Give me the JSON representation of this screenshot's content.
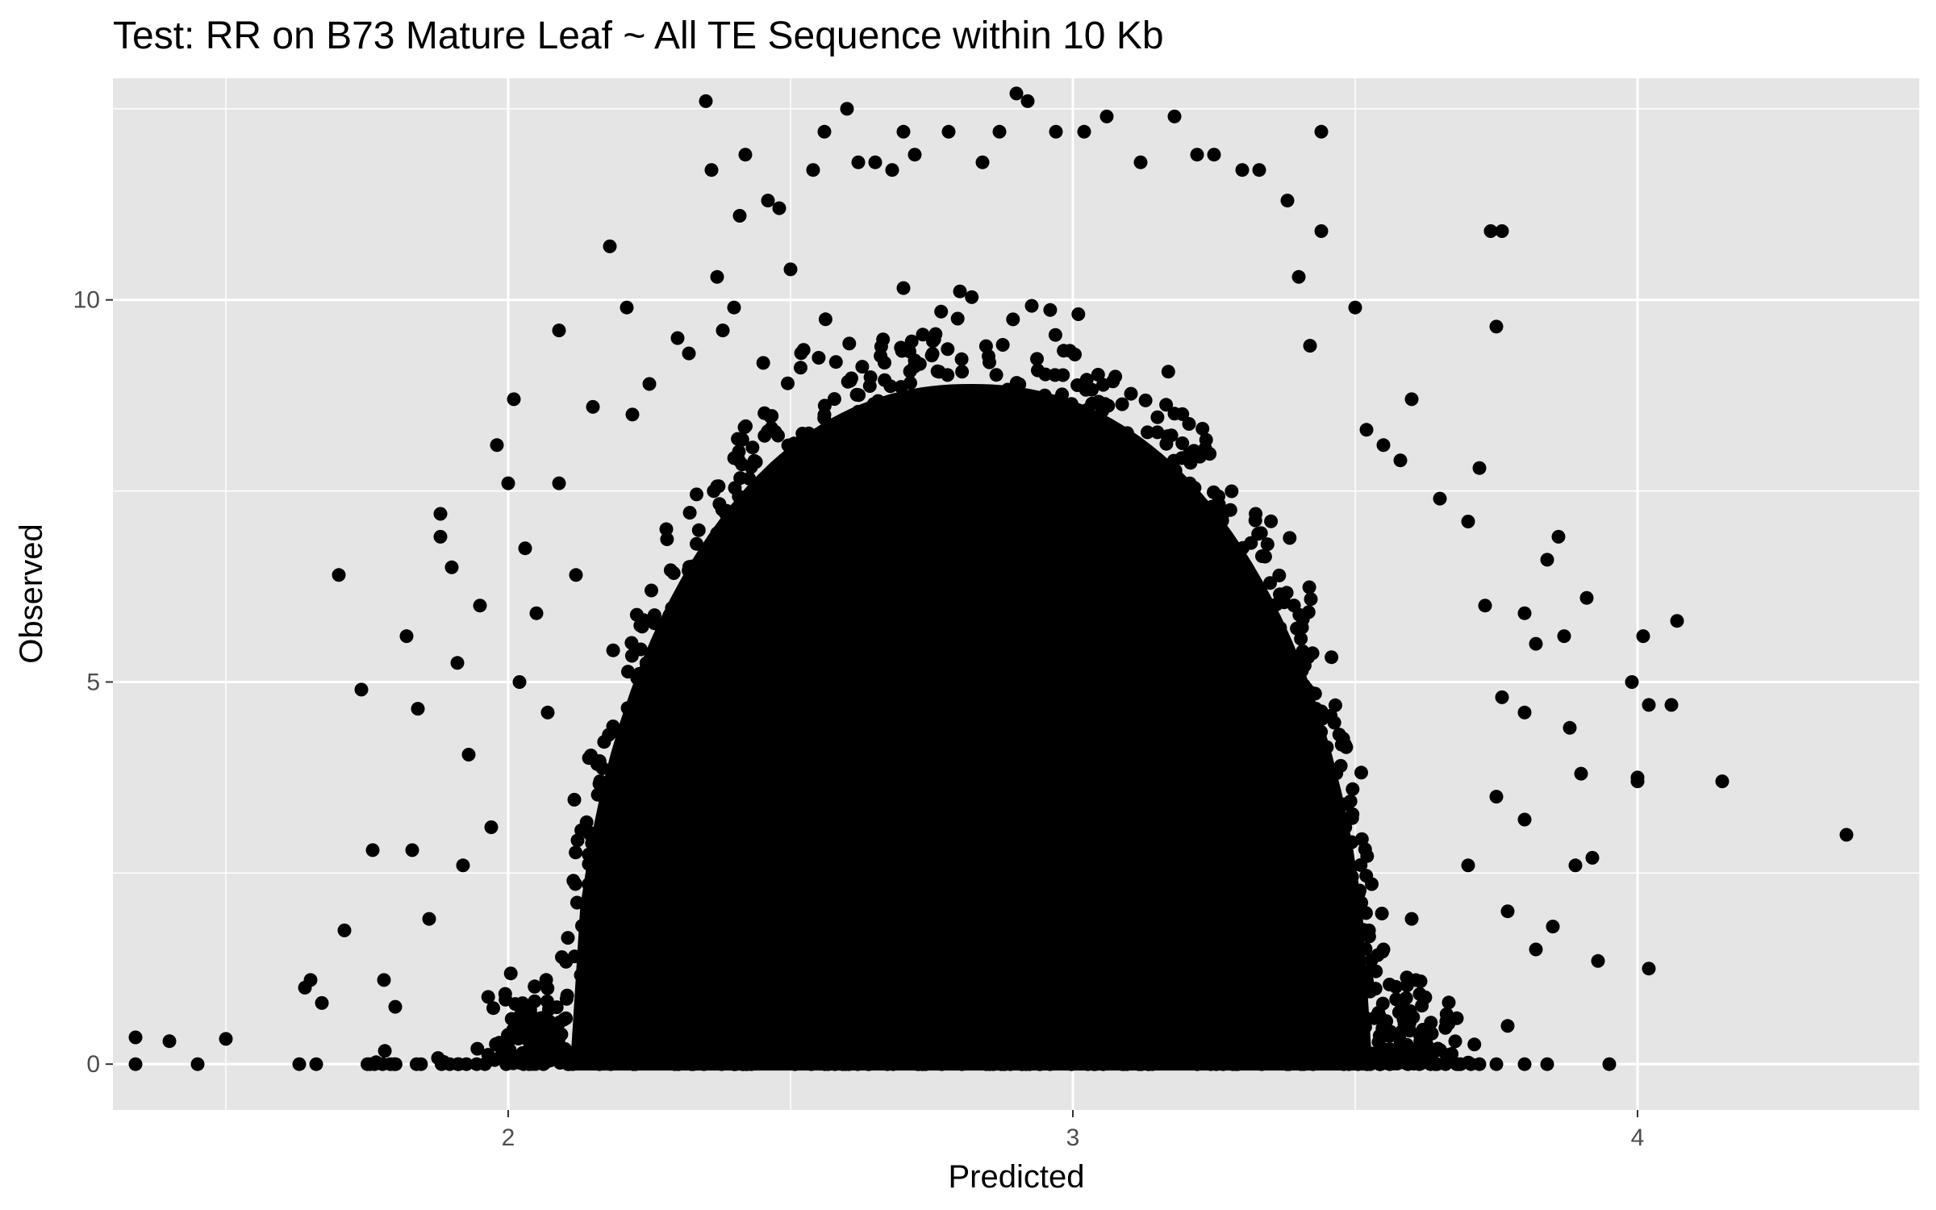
{
  "chart_data": {
    "type": "scatter",
    "title": "Test: RR on B73 Mature Leaf ~ All TE Sequence within 10 Kb",
    "xlabel": "Predicted",
    "ylabel": "Observed",
    "xlim": [
      1.3,
      4.5
    ],
    "ylim": [
      -0.6,
      12.9
    ],
    "x_ticks": [
      2,
      3,
      4
    ],
    "y_ticks": [
      0,
      5,
      10
    ],
    "x_tick_labels": [
      "2",
      "3",
      "4"
    ],
    "y_tick_labels": [
      "0",
      "5",
      "10"
    ],
    "grid": true,
    "legend": "none",
    "colors": {
      "panel": "#e5e5e5",
      "grid": "#ffffff",
      "point": "#000000",
      "tick": "#4d4d4d"
    },
    "dense_core": {
      "description_of_distribution": "solid filled dome of overlapping points",
      "center_x": 2.82,
      "base_x_range": [
        2.1,
        3.52
      ],
      "peak_y": 8.9,
      "base_y": 0
    },
    "points": [
      [
        1.34,
        0.35
      ],
      [
        1.34,
        0.0
      ],
      [
        1.4,
        0.3
      ],
      [
        1.45,
        0.0
      ],
      [
        1.5,
        0.33
      ],
      [
        1.63,
        0.0
      ],
      [
        1.64,
        1.0
      ],
      [
        1.65,
        1.1
      ],
      [
        1.66,
        0.0
      ],
      [
        1.67,
        0.8
      ],
      [
        1.7,
        6.4
      ],
      [
        1.71,
        1.75
      ],
      [
        1.74,
        4.9
      ],
      [
        1.76,
        2.8
      ],
      [
        1.78,
        1.1
      ],
      [
        1.8,
        0.75
      ],
      [
        1.82,
        5.6
      ],
      [
        1.83,
        2.8
      ],
      [
        1.84,
        4.65
      ],
      [
        1.86,
        1.9
      ],
      [
        1.88,
        7.2
      ],
      [
        1.88,
        6.9
      ],
      [
        1.9,
        6.5
      ],
      [
        1.91,
        5.25
      ],
      [
        1.92,
        2.6
      ],
      [
        1.93,
        4.05
      ],
      [
        1.95,
        6.0
      ],
      [
        1.97,
        3.1
      ],
      [
        1.98,
        8.1
      ],
      [
        2.0,
        7.6
      ],
      [
        2.01,
        8.7
      ],
      [
        2.02,
        5.0
      ],
      [
        2.03,
        6.75
      ],
      [
        2.05,
        5.9
      ],
      [
        2.07,
        4.6
      ],
      [
        2.09,
        9.6
      ],
      [
        2.09,
        7.6
      ],
      [
        2.12,
        6.4
      ],
      [
        2.15,
        8.6
      ],
      [
        2.16,
        2.0
      ],
      [
        2.18,
        10.7
      ],
      [
        2.21,
        9.9
      ],
      [
        2.22,
        8.5
      ],
      [
        2.25,
        8.9
      ],
      [
        2.28,
        7.0
      ],
      [
        2.3,
        9.5
      ],
      [
        2.32,
        9.3
      ],
      [
        2.35,
        12.6
      ],
      [
        2.36,
        11.7
      ],
      [
        2.37,
        10.3
      ],
      [
        2.38,
        9.6
      ],
      [
        2.4,
        9.9
      ],
      [
        2.41,
        11.1
      ],
      [
        2.42,
        11.9
      ],
      [
        2.46,
        11.3
      ],
      [
        2.48,
        11.2
      ],
      [
        2.5,
        10.4
      ],
      [
        2.54,
        11.7
      ],
      [
        2.56,
        12.2
      ],
      [
        2.6,
        12.5
      ],
      [
        2.62,
        11.8
      ],
      [
        2.65,
        11.8
      ],
      [
        2.68,
        11.7
      ],
      [
        2.7,
        12.2
      ],
      [
        2.72,
        11.9
      ],
      [
        2.78,
        12.2
      ],
      [
        2.84,
        11.8
      ],
      [
        2.87,
        12.2
      ],
      [
        2.9,
        12.7
      ],
      [
        2.92,
        12.6
      ],
      [
        2.97,
        12.2
      ],
      [
        3.02,
        12.2
      ],
      [
        3.06,
        12.4
      ],
      [
        3.12,
        11.8
      ],
      [
        3.18,
        12.4
      ],
      [
        3.22,
        11.9
      ],
      [
        3.25,
        11.9
      ],
      [
        3.3,
        11.7
      ],
      [
        3.33,
        11.7
      ],
      [
        3.38,
        11.3
      ],
      [
        3.44,
        12.2
      ],
      [
        3.44,
        10.9
      ],
      [
        3.4,
        10.3
      ],
      [
        3.42,
        9.4
      ],
      [
        3.5,
        9.9
      ],
      [
        3.52,
        8.3
      ],
      [
        3.55,
        8.1
      ],
      [
        3.58,
        7.9
      ],
      [
        3.6,
        8.7
      ],
      [
        3.65,
        7.4
      ],
      [
        3.7,
        7.1
      ],
      [
        3.74,
        10.9
      ],
      [
        3.76,
        10.9
      ],
      [
        3.75,
        9.65
      ],
      [
        3.72,
        7.8
      ],
      [
        3.73,
        6.0
      ],
      [
        3.8,
        5.9
      ],
      [
        3.82,
        5.5
      ],
      [
        3.84,
        6.6
      ],
      [
        3.86,
        6.9
      ],
      [
        3.87,
        5.6
      ],
      [
        3.76,
        4.8
      ],
      [
        3.8,
        4.6
      ],
      [
        3.88,
        4.4
      ],
      [
        3.91,
        6.1
      ],
      [
        3.9,
        3.8
      ],
      [
        3.92,
        2.7
      ],
      [
        3.89,
        2.6
      ],
      [
        3.99,
        5.0
      ],
      [
        4.01,
        5.6
      ],
      [
        4.02,
        4.7
      ],
      [
        4.06,
        4.7
      ],
      [
        4.07,
        5.8
      ],
      [
        4.0,
        3.75
      ],
      [
        4.0,
        3.7
      ],
      [
        4.15,
        3.7
      ],
      [
        4.37,
        3.0
      ],
      [
        3.93,
        1.35
      ],
      [
        4.02,
        1.25
      ],
      [
        3.95,
        0.0
      ],
      [
        3.8,
        0.0
      ],
      [
        3.82,
        1.5
      ],
      [
        3.77,
        2.0
      ],
      [
        3.8,
        3.2
      ],
      [
        3.75,
        3.5
      ],
      [
        3.7,
        2.6
      ],
      [
        3.72,
        0.0
      ],
      [
        3.68,
        0.6
      ],
      [
        3.66,
        0.0
      ],
      [
        3.6,
        1.9
      ],
      [
        3.58,
        0.3
      ],
      [
        3.55,
        1.5
      ],
      [
        3.62,
        0.45
      ],
      [
        3.77,
        0.5
      ],
      [
        3.75,
        0.0
      ],
      [
        3.85,
        1.8
      ],
      [
        3.84,
        0.0
      ]
    ]
  }
}
